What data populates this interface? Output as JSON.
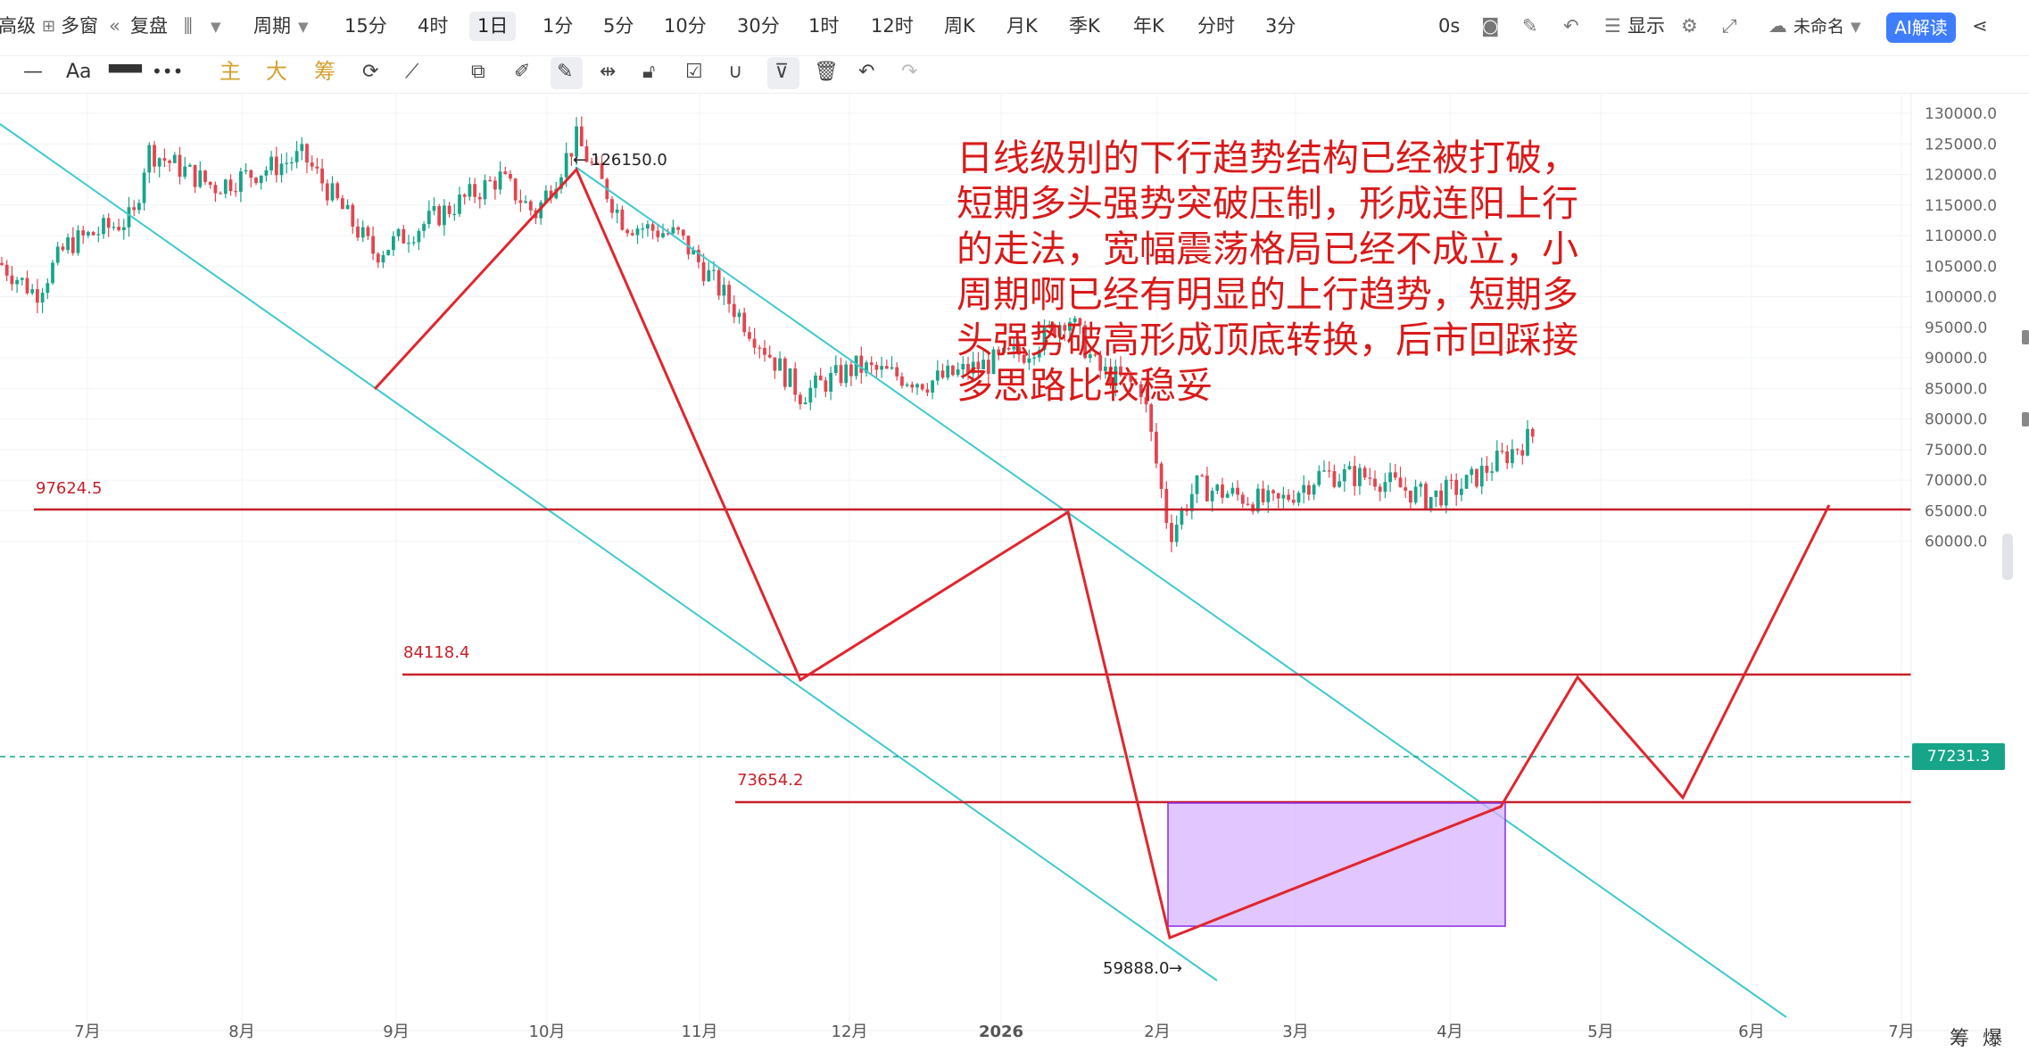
{
  "toolbar": {
    "advanced": "高级",
    "multi_window": "多窗",
    "replay": "复盘",
    "period_label": "周期",
    "periods": [
      "15分",
      "4时",
      "1日",
      "1分",
      "5分",
      "10分",
      "30分",
      "1时",
      "12时",
      "周K",
      "月K",
      "季K",
      "年K",
      "分时",
      "3分"
    ],
    "active_period": "1日",
    "timer": "0s",
    "display_label": "显示",
    "layout_name": "未命名",
    "ai_label": "AI解读"
  },
  "toolbar2": {
    "font_label": "Aa",
    "indicator_main": "主",
    "indicator_big": "大",
    "indicator_chip": "筹"
  },
  "chart": {
    "y_ticks": [
      "130000.0",
      "125000.0",
      "120000.0",
      "115000.0",
      "110000.0",
      "105000.0",
      "100000.0",
      "95000.0",
      "90000.0",
      "85000.0",
      "80000.0",
      "75000.0",
      "70000.0",
      "65000.0",
      "60000.0"
    ],
    "x_ticks": [
      "7月",
      "8月",
      "9月",
      "10月",
      "11月",
      "12月",
      "2026",
      "2月",
      "3月",
      "4月",
      "5月",
      "6月",
      "7月"
    ],
    "current_price": "77231.3",
    "levels": [
      "97624.5",
      "84118.4",
      "73654.2"
    ],
    "peak_label": "126150.0",
    "low_label": "59888.0",
    "annotation": "日线级别的下行趋势结构已经被打破，短期多头强势突破压制，形成连阳上行的走法，宽幅震荡格局已经不成立，小周期啊已经有明显的上行趋势，短期多头强势破高形成顶底转换，后市回踩接多思路比较稳妥",
    "chou_label": "筹",
    "bao_label": "爆",
    "colors": {
      "up": "#17a589",
      "down": "#e2454f",
      "level_line": "#c8202a",
      "channel": "#3fc9cf",
      "zone_fill": "#d7b3ff"
    }
  }
}
